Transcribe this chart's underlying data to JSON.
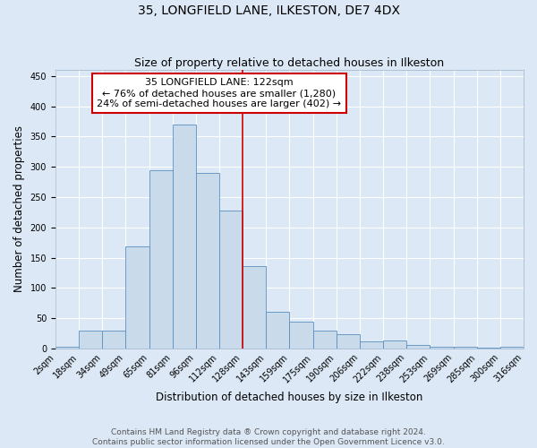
{
  "title": "35, LONGFIELD LANE, ILKESTON, DE7 4DX",
  "subtitle": "Size of property relative to detached houses in Ilkeston",
  "xlabel": "Distribution of detached houses by size in Ilkeston",
  "ylabel": "Number of detached properties",
  "bar_labels": [
    "2sqm",
    "18sqm",
    "34sqm",
    "49sqm",
    "65sqm",
    "81sqm",
    "96sqm",
    "112sqm",
    "128sqm",
    "143sqm",
    "159sqm",
    "175sqm",
    "190sqm",
    "206sqm",
    "222sqm",
    "238sqm",
    "253sqm",
    "269sqm",
    "285sqm",
    "300sqm",
    "316sqm"
  ],
  "bar_values": [
    2,
    29,
    29,
    168,
    295,
    370,
    290,
    228,
    136,
    61,
    44,
    29,
    24,
    11,
    13,
    5,
    3,
    2,
    1,
    2
  ],
  "bar_color": "#c9daea",
  "bar_edge_color": "#5a8fc0",
  "background_color": "#dce8f5",
  "grid_color": "#ffffff",
  "vline_color": "#cc0000",
  "annotation_title": "35 LONGFIELD LANE: 122sqm",
  "annotation_line1": "← 76% of detached houses are smaller (1,280)",
  "annotation_line2": "24% of semi-detached houses are larger (402) →",
  "annotation_box_color": "#ffffff",
  "annotation_box_edge": "#cc0000",
  "footer1": "Contains HM Land Registry data ® Crown copyright and database right 2024.",
  "footer2": "Contains public sector information licensed under the Open Government Licence v3.0.",
  "ylim": [
    0,
    460
  ],
  "title_fontsize": 10,
  "subtitle_fontsize": 9,
  "axis_label_fontsize": 8.5,
  "tick_fontsize": 7,
  "footer_fontsize": 6.5,
  "annotation_fontsize": 8
}
